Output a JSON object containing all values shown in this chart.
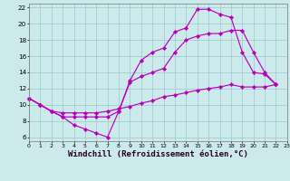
{
  "background_color": "#cce9ec",
  "grid_color": "#99c8cc",
  "line_color": "#bb00bb",
  "marker": "D",
  "markersize": 2.2,
  "linewidth": 0.85,
  "xlabel": "Windchill (Refroidissement éolien,°C)",
  "xlabel_fontsize": 6.5,
  "xlim": [
    0,
    23
  ],
  "ylim": [
    5.5,
    22.5
  ],
  "ytick_vals": [
    6,
    8,
    10,
    12,
    14,
    16,
    18,
    20,
    22
  ],
  "xtick_vals": [
    0,
    1,
    2,
    3,
    4,
    5,
    6,
    7,
    8,
    9,
    10,
    11,
    12,
    13,
    14,
    15,
    16,
    17,
    18,
    19,
    20,
    21,
    22,
    23
  ],
  "curves": [
    {
      "x": [
        0,
        1,
        2,
        3,
        4,
        5,
        6,
        7,
        8,
        9,
        10,
        11,
        12,
        13,
        14,
        15,
        16,
        17,
        18,
        19,
        20,
        21,
        22
      ],
      "y": [
        10.8,
        10.0,
        9.2,
        8.5,
        7.5,
        7.0,
        6.5,
        6.0,
        9.2,
        13.0,
        15.5,
        16.5,
        17.0,
        19.0,
        19.5,
        21.8,
        21.8,
        21.2,
        20.8,
        16.5,
        14.0,
        13.8,
        12.5
      ]
    },
    {
      "x": [
        0,
        1,
        2,
        3,
        4,
        5,
        6,
        7,
        8,
        9,
        10,
        11,
        12,
        13,
        14,
        15,
        16,
        17,
        18,
        19,
        20,
        21,
        22
      ],
      "y": [
        10.8,
        10.0,
        9.2,
        9.0,
        9.0,
        9.0,
        9.0,
        9.2,
        9.5,
        9.8,
        10.2,
        10.5,
        11.0,
        11.2,
        11.5,
        11.8,
        12.0,
        12.2,
        12.5,
        12.2,
        12.2,
        12.2,
        12.5
      ]
    },
    {
      "x": [
        0,
        1,
        2,
        3,
        4,
        5,
        6,
        7,
        8,
        9,
        10,
        11,
        12,
        13,
        14,
        15,
        16,
        17,
        18,
        19,
        20,
        21,
        22
      ],
      "y": [
        10.8,
        10.0,
        9.2,
        8.5,
        8.5,
        8.5,
        8.5,
        8.5,
        9.2,
        12.8,
        13.5,
        14.0,
        14.5,
        16.5,
        18.0,
        18.5,
        18.8,
        18.8,
        19.2,
        19.2,
        16.5,
        14.0,
        12.5
      ]
    }
  ]
}
